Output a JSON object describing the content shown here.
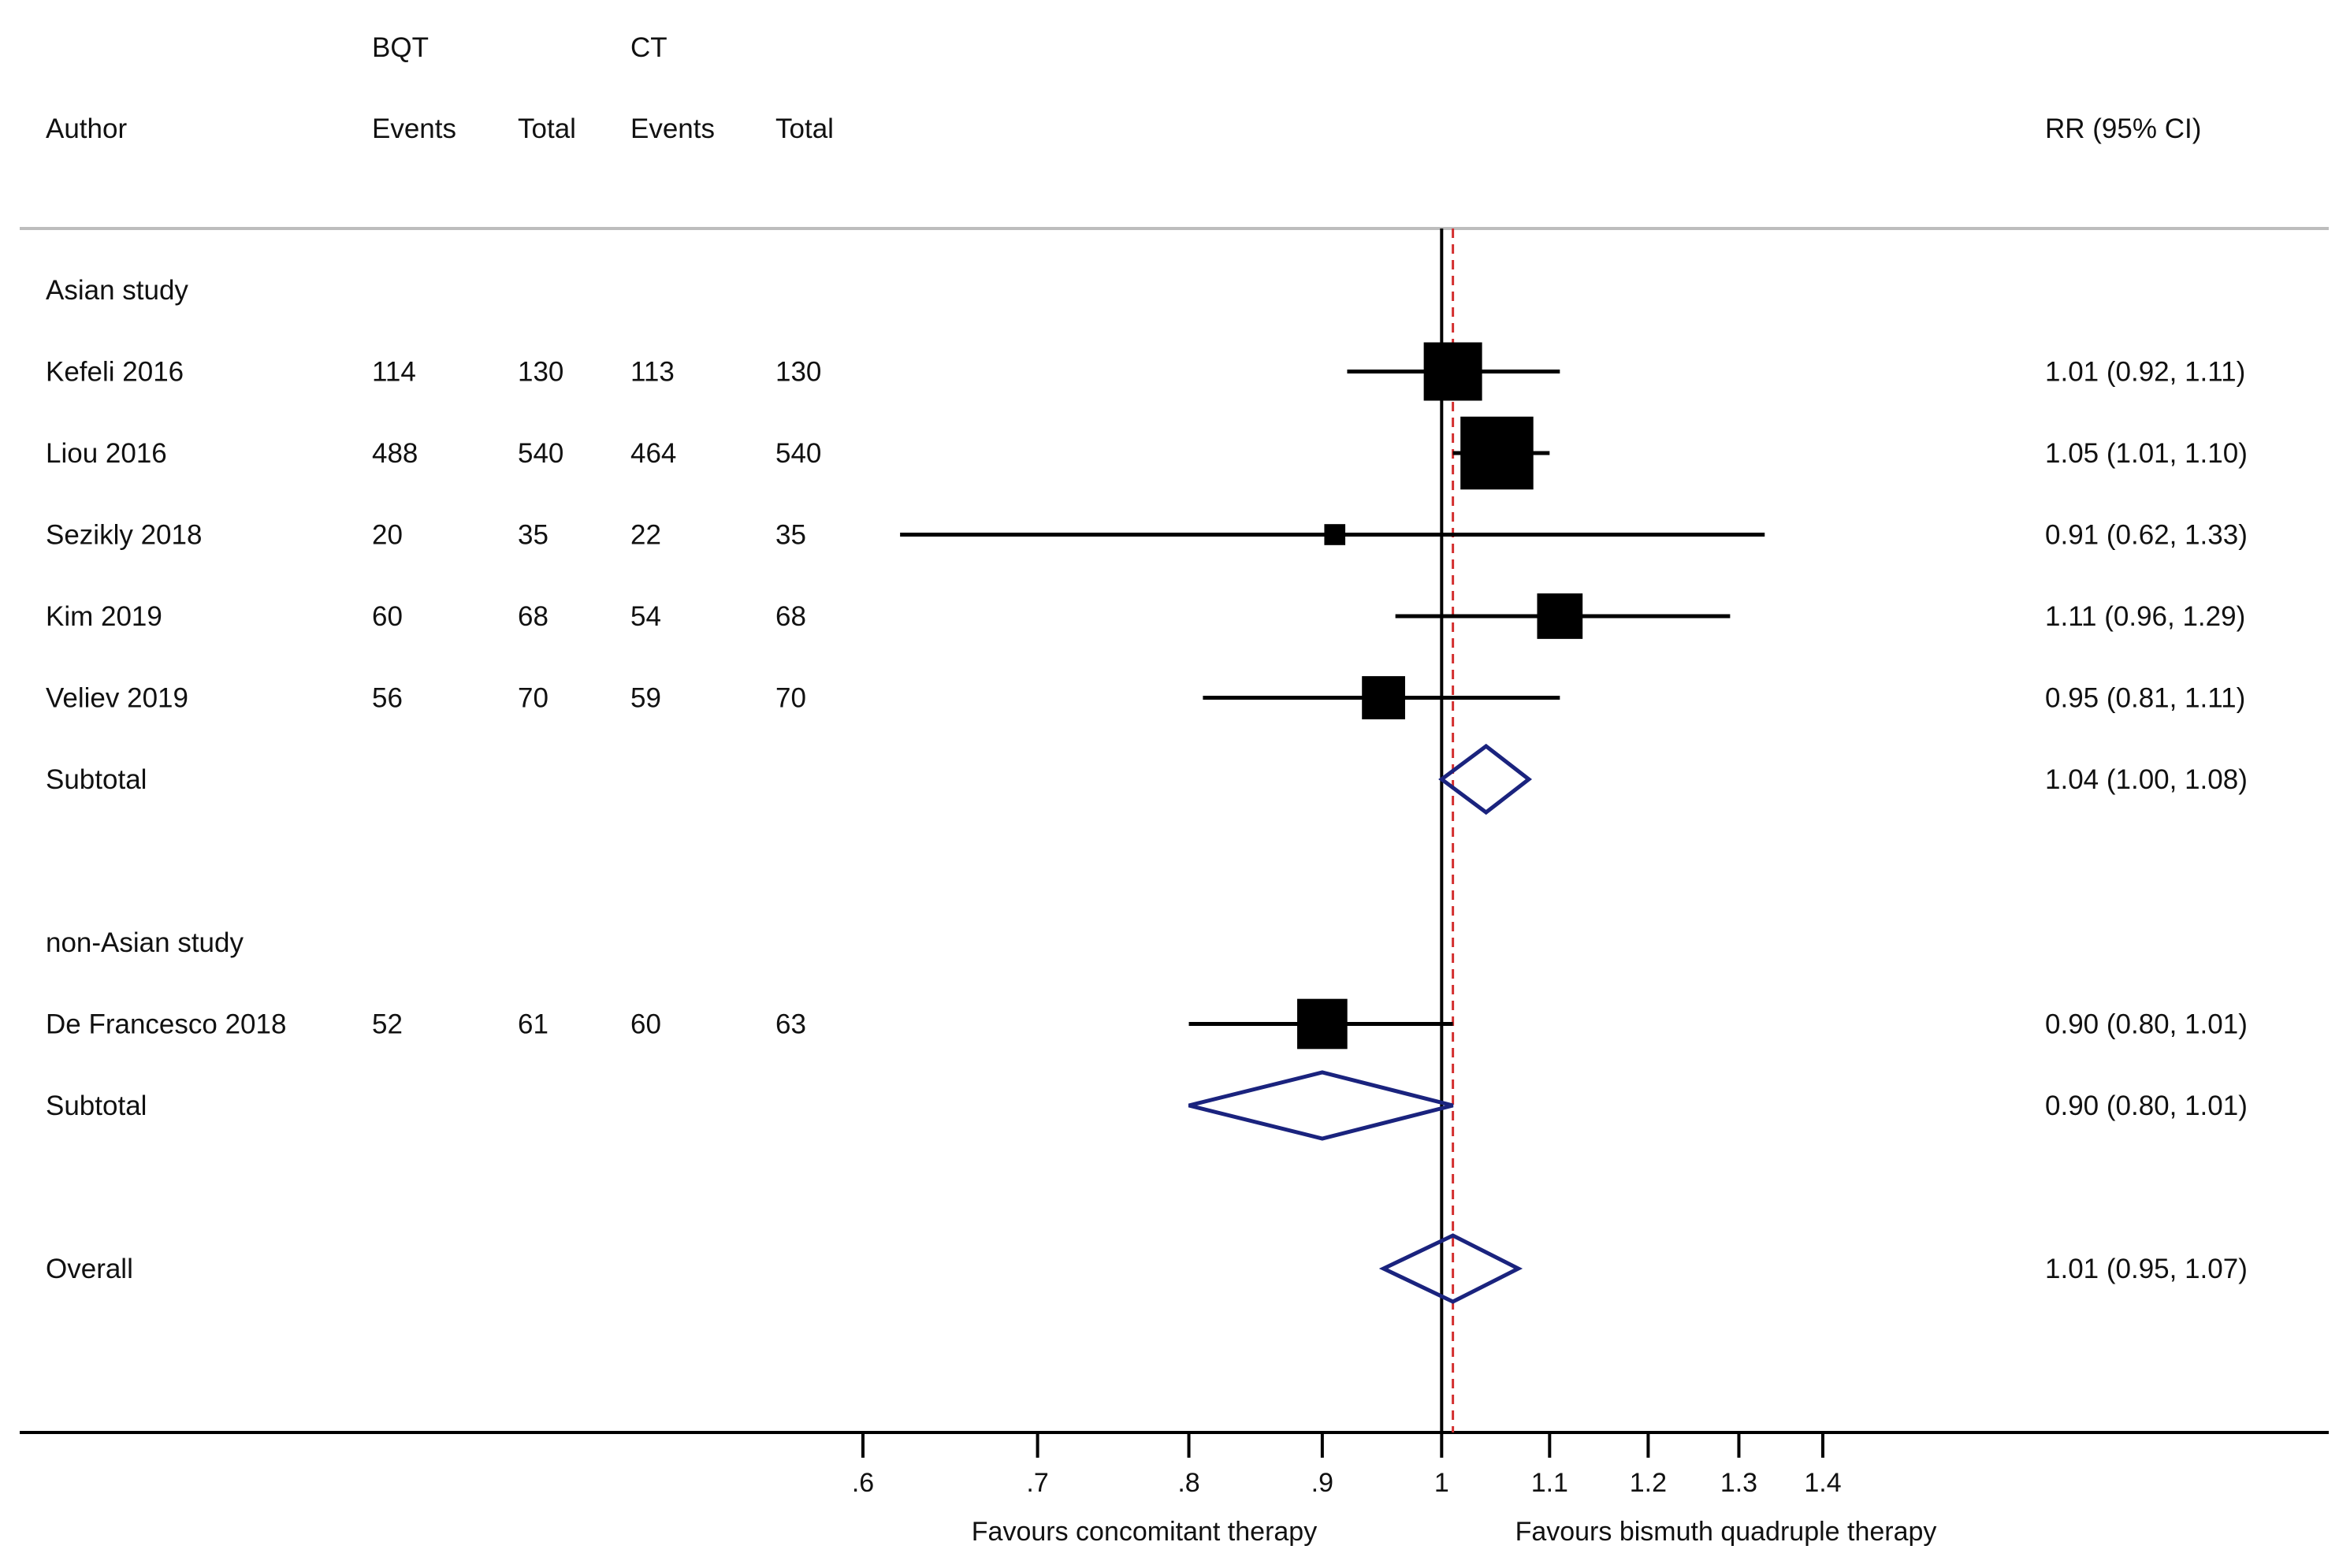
{
  "chart_data": {
    "type": "forest",
    "scale": "log",
    "xlim": [
      0.6,
      1.4
    ],
    "x_ticks": [
      ".6",
      ".7",
      ".8",
      ".9",
      "1",
      "1.1",
      "1.2",
      "1.3",
      "1.4"
    ],
    "x_tick_values": [
      0.6,
      0.7,
      0.8,
      0.9,
      1.0,
      1.1,
      1.2,
      1.3,
      1.4
    ],
    "null_line": 1,
    "overall_line": 1.01,
    "left_label": "Favours concomitant therapy",
    "right_label": "Favours bismuth quadruple therapy",
    "headers": {
      "group1": "BQT",
      "group2": "CT",
      "author": "Author",
      "events1": "Events",
      "total1": "Total",
      "events2": "Events",
      "total2": "Total",
      "effect": "RR (95% CI)"
    },
    "rows": [
      {
        "kind": "group",
        "label": "Asian study"
      },
      {
        "kind": "study",
        "label": "Kefeli 2016",
        "e1": "114",
        "t1": "130",
        "e2": "113",
        "t2": "130",
        "rr": 1.01,
        "lo": 0.92,
        "hi": 1.11,
        "weight": 1.0,
        "ci": "1.01 (0.92, 1.11)"
      },
      {
        "kind": "study",
        "label": "Liou 2016",
        "e1": "488",
        "t1": "540",
        "e2": "464",
        "t2": "540",
        "rr": 1.05,
        "lo": 1.01,
        "hi": 1.1,
        "weight": 1.25,
        "ci": "1.05 (1.01, 1.10)"
      },
      {
        "kind": "study",
        "label": "Sezikly  2018",
        "e1": "20",
        "t1": "35",
        "e2": "22",
        "t2": "35",
        "rr": 0.91,
        "lo": 0.62,
        "hi": 1.33,
        "weight": 0.36,
        "ci": "0.91 (0.62, 1.33)"
      },
      {
        "kind": "study",
        "label": "Kim  2019",
        "e1": "60",
        "t1": "68",
        "e2": "54",
        "t2": "68",
        "rr": 1.11,
        "lo": 0.96,
        "hi": 1.29,
        "weight": 0.78,
        "ci": "1.11 (0.96, 1.29)"
      },
      {
        "kind": "study",
        "label": "Veliev 2019",
        "e1": "56",
        "t1": "70",
        "e2": "59",
        "t2": "70",
        "rr": 0.95,
        "lo": 0.81,
        "hi": 1.11,
        "weight": 0.74,
        "ci": "0.95 (0.81, 1.11)"
      },
      {
        "kind": "subtotal",
        "label": "Subtotal",
        "rr": 1.04,
        "lo": 1.0,
        "hi": 1.08,
        "ci": "1.04 (1.00, 1.08)"
      },
      {
        "kind": "spacer"
      },
      {
        "kind": "group",
        "label": "non-Asian study"
      },
      {
        "kind": "study",
        "label": "De Francesco 2018",
        "e1": "52",
        "t1": "61",
        "e2": "60",
        "t2": "63",
        "rr": 0.9,
        "lo": 0.8,
        "hi": 1.01,
        "weight": 0.86,
        "ci": "0.90 (0.80, 1.01)"
      },
      {
        "kind": "subtotal",
        "label": "Subtotal",
        "rr": 0.9,
        "lo": 0.8,
        "hi": 1.01,
        "ci": "0.90 (0.80, 1.01)"
      },
      {
        "kind": "spacer"
      },
      {
        "kind": "overall",
        "label": "Overall",
        "rr": 1.01,
        "lo": 0.95,
        "hi": 1.07,
        "ci": "1.01 (0.95, 1.07)"
      }
    ],
    "colors": {
      "marker": "#000000",
      "diamond": "#1a237e",
      "null_line": "#000000",
      "overall_line": "#d32f2f",
      "rule": "#bdbdbd"
    }
  }
}
